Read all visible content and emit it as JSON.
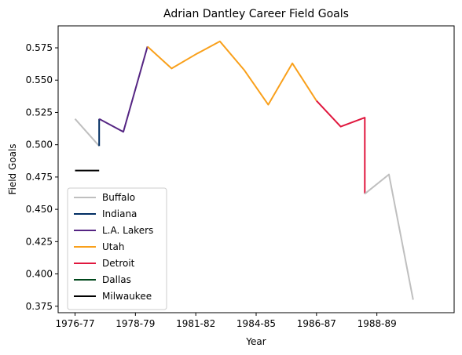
{
  "chart_data": {
    "type": "line",
    "title": "Adrian Dantley Career Field Goals",
    "xlabel": "Year",
    "ylabel": "Field Goals",
    "xlim": [
      -0.7,
      15.7
    ],
    "ylim": [
      0.37,
      0.592
    ],
    "x_tick_labels": [
      {
        "x": 0,
        "label": "1976-77"
      },
      {
        "x": 2.5,
        "label": "1978-79"
      },
      {
        "x": 5,
        "label": "1981-82"
      },
      {
        "x": 7.5,
        "label": "1984-85"
      },
      {
        "x": 10,
        "label": "1986-87"
      },
      {
        "x": 12.5,
        "label": "1988-89"
      }
    ],
    "y_ticks": [
      0.375,
      0.4,
      0.425,
      0.45,
      0.475,
      0.5,
      0.525,
      0.55,
      0.575
    ],
    "y_tick_labels": [
      "0.375",
      "0.400",
      "0.425",
      "0.450",
      "0.475",
      "0.500",
      "0.525",
      "0.550",
      "0.575"
    ],
    "grid": false,
    "legend_position": "lower-left",
    "series": [
      {
        "name": "Buffalo",
        "color": "#bfbfbf",
        "points": [
          [
            0,
            0.52
          ],
          [
            1,
            0.499
          ]
        ]
      },
      {
        "name": "Indiana",
        "color": "#002d62",
        "points": [
          [
            1,
            0.499
          ],
          [
            1,
            0.52
          ]
        ]
      },
      {
        "name": "L.A. Lakers",
        "color": "#552583",
        "points": [
          [
            1,
            0.52
          ],
          [
            2,
            0.51
          ],
          [
            3,
            0.576
          ]
        ]
      },
      {
        "name": "Utah",
        "color": "#f9a01b",
        "points": [
          [
            3,
            0.576
          ],
          [
            4,
            0.559
          ],
          [
            5,
            0.57
          ],
          [
            6,
            0.58
          ],
          [
            7,
            0.558
          ],
          [
            8,
            0.531
          ],
          [
            9,
            0.563
          ],
          [
            10,
            0.534
          ]
        ]
      },
      {
        "name": "Detroit",
        "color": "#e0173e",
        "points": [
          [
            10,
            0.534
          ],
          [
            11,
            0.514
          ],
          [
            12,
            0.521
          ],
          [
            12,
            0.462
          ]
        ]
      },
      {
        "name": "Dallas",
        "color": "#00471b",
        "points": []
      },
      {
        "name": "Milwaukee",
        "color": "#000000",
        "points": [
          [
            0,
            0.48
          ],
          [
            1,
            0.48
          ]
        ]
      },
      {
        "name": "",
        "color": "#bfbfbf",
        "points": [
          [
            12,
            0.462
          ],
          [
            13,
            0.477
          ],
          [
            14,
            0.38
          ]
        ]
      }
    ]
  }
}
